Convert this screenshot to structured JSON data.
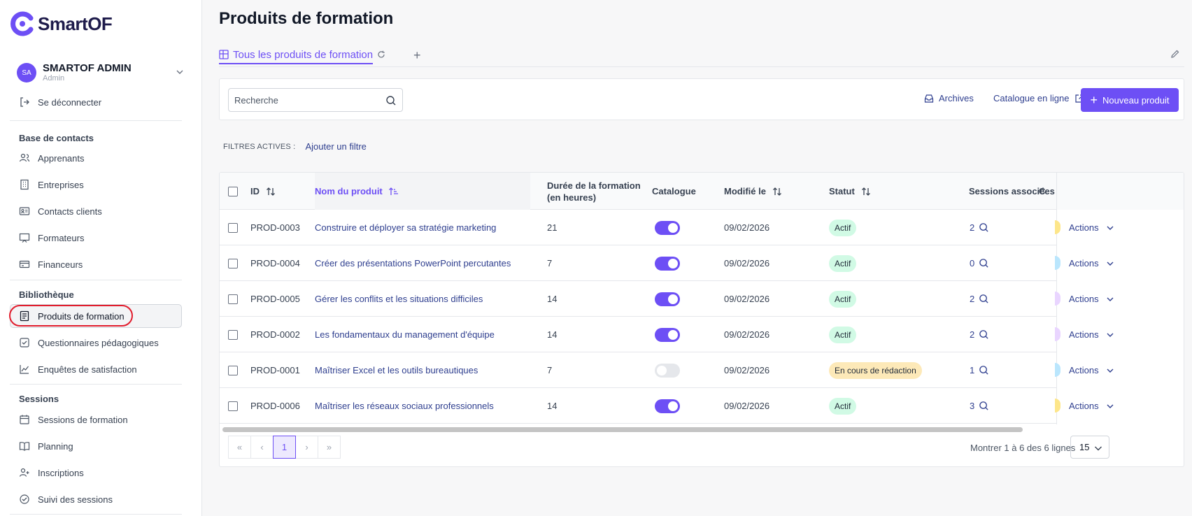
{
  "brand": {
    "name": "SmartOF",
    "accent": "#6d4ff5",
    "annotation_color": "#e11d2d"
  },
  "user": {
    "initials": "SA",
    "name": "SMARTOF ADMIN",
    "role": "Admin"
  },
  "sidebar": {
    "logout": "Se déconnecter",
    "sections": [
      {
        "title": "Base de contacts",
        "items": [
          "Apprenants",
          "Entreprises",
          "Contacts clients",
          "Formateurs",
          "Financeurs"
        ]
      },
      {
        "title": "Bibliothèque",
        "items": [
          "Produits de formation",
          "Questionnaires pédagogiques",
          "Enquêtes de satisfaction"
        ]
      },
      {
        "title": "Sessions",
        "items": [
          "Sessions de formation",
          "Planning",
          "Inscriptions",
          "Suivi des sessions"
        ]
      }
    ],
    "active_item": "Produits de formation"
  },
  "page": {
    "title": "Produits de formation"
  },
  "tabs": {
    "active": "Tous les produits de formation",
    "add_label": "+"
  },
  "toolbar": {
    "search_placeholder": "Recherche",
    "archives": "Archives",
    "catalogue": "Catalogue en ligne",
    "new_product": "Nouveau produit"
  },
  "filters": {
    "label": "FILTRES ACTIVES :",
    "add": "Ajouter un filtre"
  },
  "table": {
    "columns": {
      "id": "ID",
      "name": "Nom du produit",
      "duration_line1": "Durée de la formation",
      "duration_line2": "(en heures)",
      "catalogue": "Catalogue",
      "modified": "Modifié le",
      "status": "Statut",
      "sessions": "Sessions associées",
      "truncated": "C"
    },
    "rows": [
      {
        "id": "PROD-0003",
        "name": "Construire et déployer sa stratégie marketing",
        "duration": "21",
        "catalogue": true,
        "modified": "09/02/2026",
        "status": "Actif",
        "sessions": "2",
        "dot_color": "#fde68a",
        "action": "Actions"
      },
      {
        "id": "PROD-0004",
        "name": "Créer des présentations PowerPoint percutantes",
        "duration": "7",
        "catalogue": true,
        "modified": "09/02/2026",
        "status": "Actif",
        "sessions": "0",
        "dot_color": "#bae6fd",
        "action": "Actions"
      },
      {
        "id": "PROD-0005",
        "name": "Gérer les conflits et les situations difficiles",
        "duration": "14",
        "catalogue": true,
        "modified": "09/02/2026",
        "status": "Actif",
        "sessions": "2",
        "dot_color": "#e9d5ff",
        "action": "Actions"
      },
      {
        "id": "PROD-0002",
        "name": "Les fondamentaux du management d'équipe",
        "duration": "14",
        "catalogue": true,
        "modified": "09/02/2026",
        "status": "Actif",
        "sessions": "2",
        "dot_color": "#e9d5ff",
        "action": "Actions"
      },
      {
        "id": "PROD-0001",
        "name": "Maîtriser Excel et les outils bureautiques",
        "duration": "7",
        "catalogue": false,
        "modified": "09/02/2026",
        "status": "En cours de rédaction",
        "sessions": "1",
        "dot_color": "#bae6fd",
        "action": "Actions"
      },
      {
        "id": "PROD-0006",
        "name": "Maîtriser les réseaux sociaux professionnels",
        "duration": "14",
        "catalogue": true,
        "modified": "09/02/2026",
        "status": "Actif",
        "sessions": "3",
        "dot_color": "#fde68a",
        "action": "Actions"
      }
    ]
  },
  "pagination": {
    "current": "1",
    "summary": "Montrer 1 à 6 des 6 lignes",
    "page_size": "15"
  }
}
